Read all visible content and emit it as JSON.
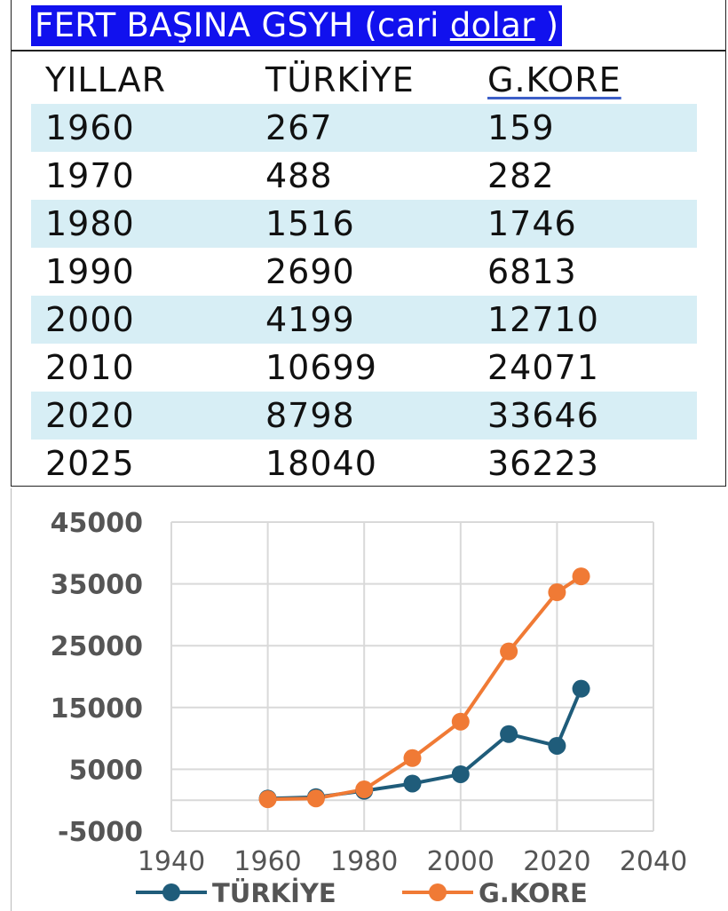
{
  "table": {
    "title_main": "FERT BAŞINA GSYH (cari ",
    "title_under": "dolar",
    "title_end": " )",
    "headers": [
      "YILLAR",
      "TÜRKİYE",
      "G.KORE"
    ],
    "rows": [
      [
        "1960",
        "267",
        "159"
      ],
      [
        "1970",
        "488",
        "282"
      ],
      [
        "1980",
        "1516",
        "1746"
      ],
      [
        "1990",
        "2690",
        "6813"
      ],
      [
        "2000",
        "4199",
        "12710"
      ],
      [
        "2010",
        "10699",
        "24071"
      ],
      [
        "2020",
        "8798",
        "33646"
      ],
      [
        "2025",
        "18040",
        "36223"
      ]
    ],
    "shade_color": "#d7eef5",
    "title_bg": "#1111ee"
  },
  "chart_data": {
    "type": "line",
    "x": [
      1960,
      1970,
      1980,
      1990,
      2000,
      2010,
      2020,
      2025
    ],
    "series": [
      {
        "name": "TÜRKİYE",
        "color": "#1f5c7a",
        "values": [
          267,
          488,
          1516,
          2690,
          4199,
          10699,
          8798,
          18040
        ]
      },
      {
        "name": "G.KORE",
        "color": "#f07a35",
        "values": [
          159,
          282,
          1746,
          6813,
          12710,
          24071,
          33646,
          36223
        ]
      }
    ],
    "xlim": [
      1940,
      2040
    ],
    "ylim": [
      -5000,
      45000
    ],
    "x_ticks": [
      1940,
      1960,
      1980,
      2000,
      2020,
      2040
    ],
    "y_ticks": [
      -5000,
      5000,
      15000,
      25000,
      35000,
      45000
    ],
    "x_tick_labels": [
      "1940",
      "1960",
      "1980",
      "2000",
      "2020",
      "2040"
    ],
    "y_tick_labels": [
      "-5000",
      "5000",
      "15000",
      "25000",
      "35000",
      "45000"
    ],
    "grid": true,
    "legend": "bottom",
    "title": "",
    "xlabel": "",
    "ylabel": ""
  }
}
